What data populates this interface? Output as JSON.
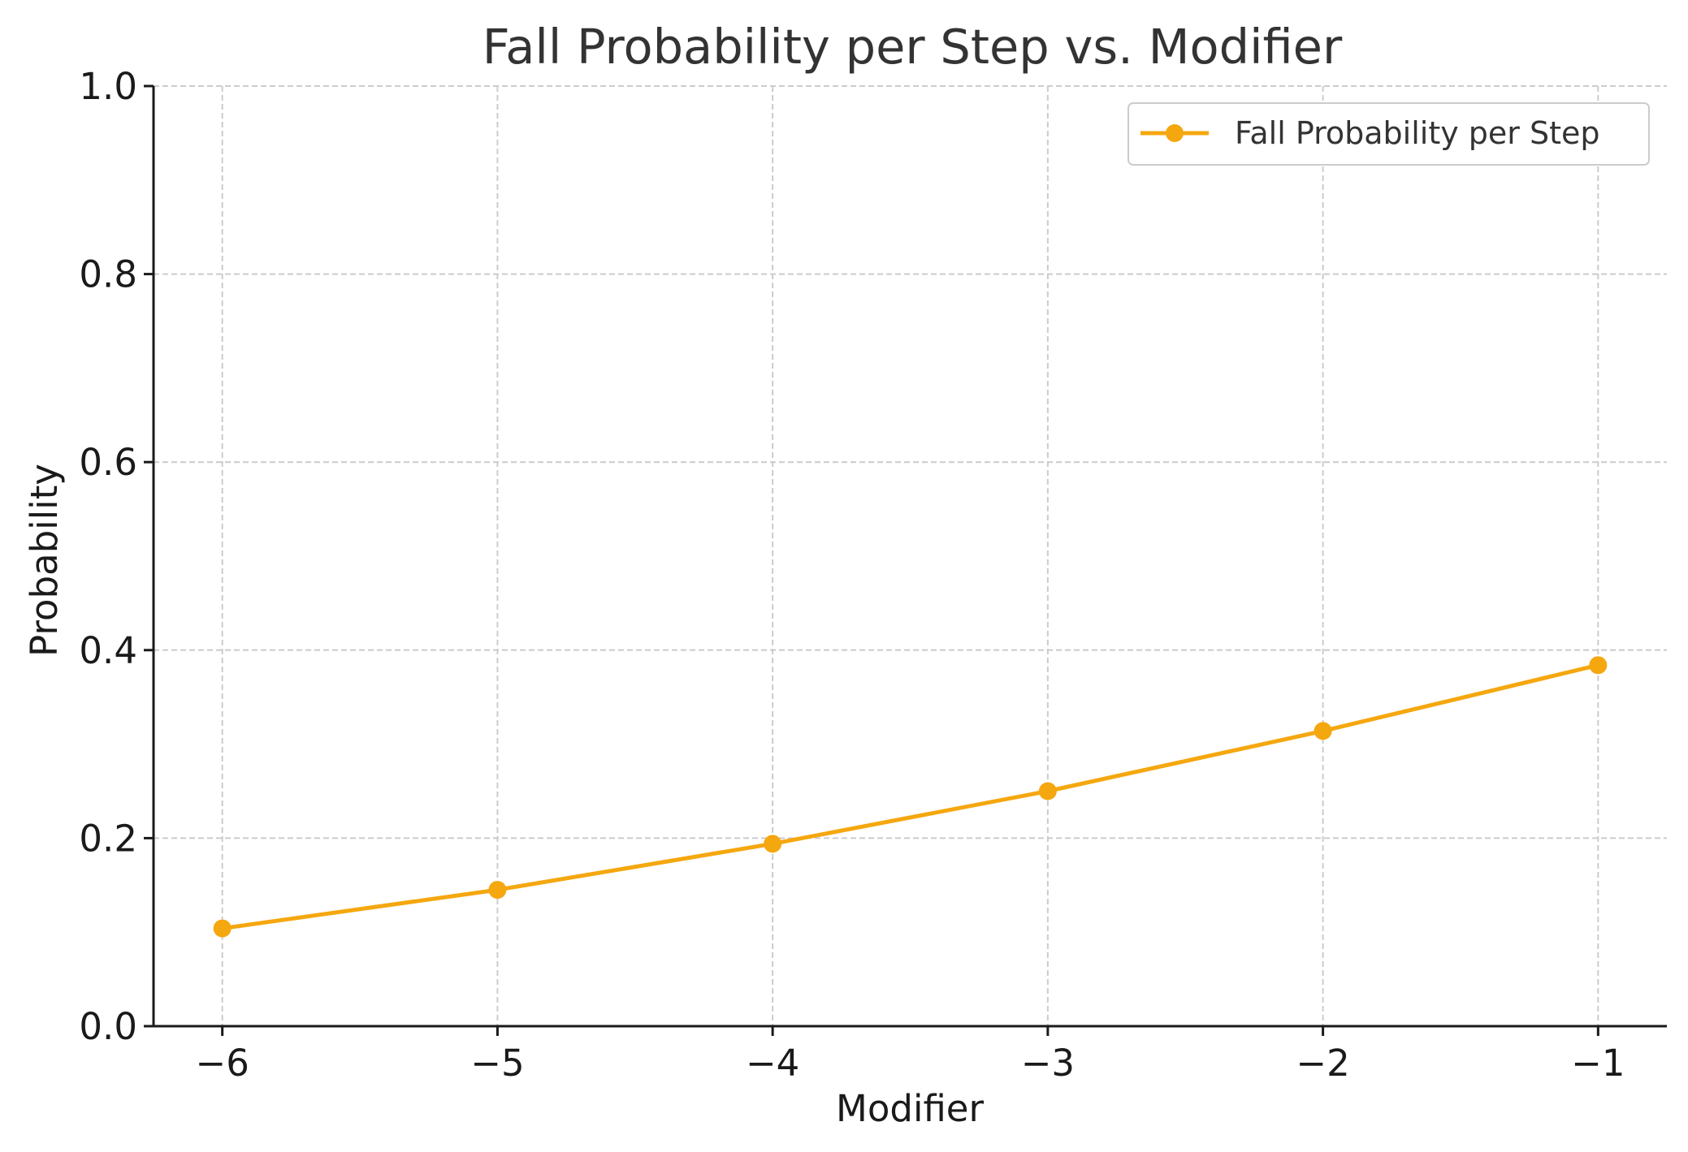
{
  "chart_data": {
    "type": "line",
    "title": "Fall Probability per Step vs. Modifier",
    "xlabel": "Modifier",
    "ylabel": "Probability",
    "xlim": [
      -6.25,
      -0.75
    ],
    "ylim": [
      0.0,
      1.0
    ],
    "x_ticks": [
      -6,
      -5,
      -4,
      -3,
      -2,
      -1
    ],
    "x_tick_labels": [
      "−6",
      "−5",
      "−4",
      "−3",
      "−2",
      "−1"
    ],
    "y_ticks": [
      0.0,
      0.2,
      0.4,
      0.6,
      0.8,
      1.0
    ],
    "y_tick_labels": [
      "0.0",
      "0.2",
      "0.4",
      "0.6",
      "0.8",
      "1.0"
    ],
    "grid": true,
    "legend_position": "top-right",
    "series": [
      {
        "name": "Fall Probability per Step",
        "color": "#f5a70f",
        "marker": "circle",
        "x": [
          -6,
          -5,
          -4,
          -3,
          -2,
          -1
        ],
        "y": [
          0.104,
          0.145,
          0.194,
          0.25,
          0.314,
          0.384
        ]
      }
    ]
  }
}
